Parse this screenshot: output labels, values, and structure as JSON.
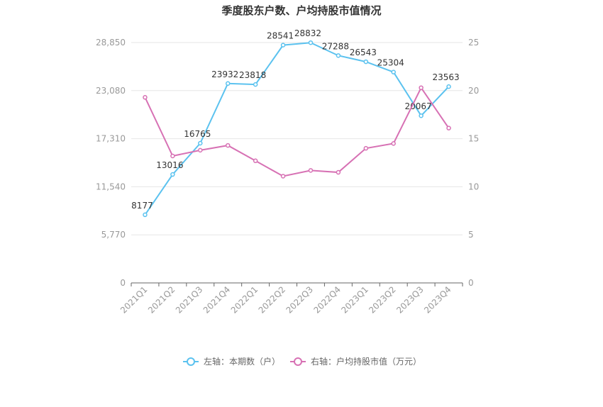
{
  "chart_data": {
    "type": "line",
    "title": "季度股东户数、户均持股市值情况",
    "categories": [
      "2021Q1",
      "2021Q2",
      "2021Q3",
      "2021Q4",
      "2022Q1",
      "2022Q2",
      "2022Q3",
      "2022Q4",
      "2023Q1",
      "2023Q2",
      "2023Q3",
      "2023Q4"
    ],
    "left_axis": {
      "ylim": [
        0,
        28850
      ],
      "ticks": [
        0,
        5770,
        11540,
        17310,
        23080,
        28850
      ],
      "tick_labels": [
        "0",
        "5,770",
        "11,540",
        "17,310",
        "23,080",
        "28,850"
      ]
    },
    "right_axis": {
      "ylim": [
        0,
        25
      ],
      "ticks": [
        0,
        5,
        10,
        15,
        20,
        25
      ],
      "tick_labels": [
        "0",
        "5",
        "10",
        "15",
        "20",
        "25"
      ]
    },
    "series": [
      {
        "name": "左轴：本期数（户）",
        "axis": "left",
        "color": "#5bc2ef",
        "values": [
          8177,
          13016,
          16765,
          23932,
          23818,
          28541,
          28832,
          27288,
          26543,
          25304,
          20067,
          23563
        ],
        "data_labels": [
          "8177",
          "13016",
          "16765",
          "23932",
          "23818",
          "28541",
          "28832",
          "27288",
          "26543",
          "25304",
          "20067",
          "23563"
        ]
      },
      {
        "name": "右轴：户均持股市值（万元）",
        "axis": "right",
        "color": "#d771b4",
        "values": [
          19.3,
          13.2,
          13.8,
          14.3,
          12.7,
          11.1,
          11.7,
          11.5,
          14.0,
          14.5,
          20.3,
          16.1
        ]
      }
    ],
    "grid": true,
    "legend": "bottom"
  }
}
